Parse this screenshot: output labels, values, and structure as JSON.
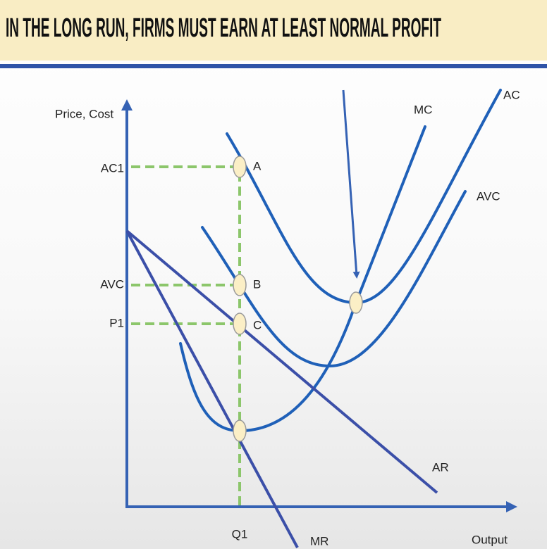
{
  "header": {
    "title": "IN THE LONG RUN, FIRMS MUST EARN AT LEAST NORMAL PROFIT"
  },
  "axes": {
    "y_label": "Price, Cost",
    "x_label": "Output"
  },
  "y_axis_labels": [
    "AC1",
    "AVC",
    "P1"
  ],
  "x_axis_labels": [
    "Q1"
  ],
  "curves": {
    "mc": "MC",
    "ac": "AC",
    "avc": "AVC",
    "ar": "AR",
    "mr": "MR"
  },
  "points": [
    "A",
    "B",
    "C"
  ]
}
